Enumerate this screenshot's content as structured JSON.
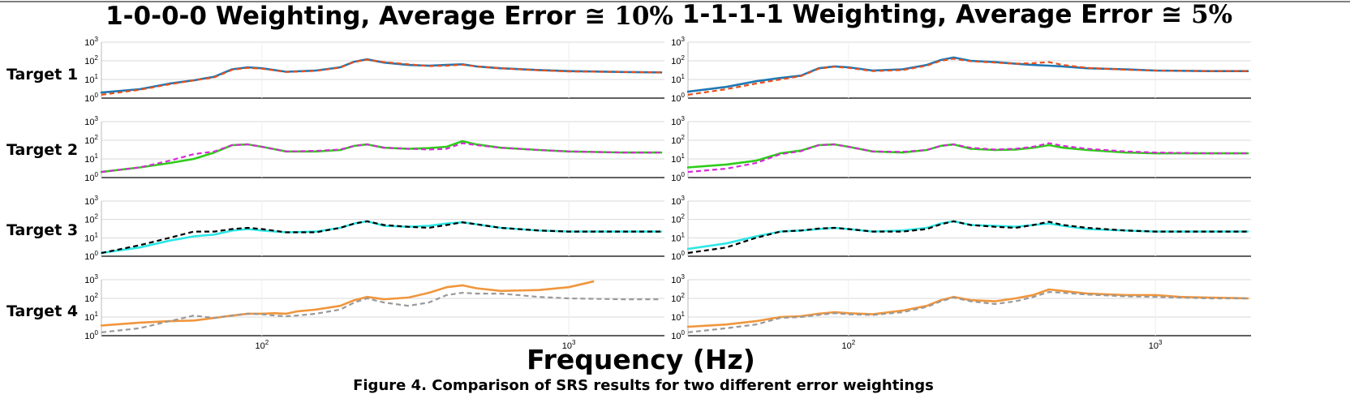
{
  "titles": [
    {
      "text": "1-0-0-0 Weighting, Average Error ≅ ",
      "math": "10%"
    },
    {
      "text": "1-1-1-1 Weighting, Average Error ≅ ",
      "math": "5%"
    }
  ],
  "row_labels": [
    "Target 1",
    "Target 2",
    "Target 3",
    "Target 4"
  ],
  "xlabel": "Frequency (Hz)",
  "caption": "Figure 4. Comparison of SRS results for two different error weightings",
  "chart_data": {
    "type": "line",
    "xscale": "log",
    "yscale": "log",
    "xlim": [
      30,
      2000
    ],
    "ylim": [
      1,
      1000
    ],
    "y_ticks": [
      {
        "base": "10",
        "exp": "0"
      },
      {
        "base": "10",
        "exp": "1"
      },
      {
        "base": "10",
        "exp": "2"
      },
      {
        "base": "10",
        "exp": "3"
      }
    ],
    "x_ticks": [
      {
        "base": "10",
        "exp": "2"
      },
      {
        "base": "10",
        "exp": "3"
      }
    ],
    "grid": true,
    "panels": [
      {
        "row": 1,
        "col": 1,
        "series": [
          {
            "style": "solid",
            "color": "#1f77b4",
            "x": [
              30,
              40,
              50,
              60,
              70,
              80,
              90,
              100,
              120,
              150,
              180,
              200,
              220,
              250,
              300,
              350,
              400,
              450,
              500,
              600,
              800,
              1000,
              1500,
              2000
            ],
            "y": [
              2,
              3,
              6,
              9,
              14,
              35,
              45,
              40,
              26,
              30,
              45,
              90,
              120,
              80,
              60,
              55,
              60,
              65,
              50,
              40,
              32,
              28,
              25,
              24
            ]
          },
          {
            "style": "dashed",
            "color": "#e8501a",
            "x": [
              30,
              40,
              50,
              60,
              70,
              80,
              90,
              100,
              120,
              150,
              180,
              200,
              220,
              250,
              300,
              350,
              400,
              450,
              500,
              600,
              800,
              1000,
              1500,
              2000
            ],
            "y": [
              1.5,
              2.8,
              5.5,
              9,
              13,
              33,
              42,
              38,
              25,
              29,
              43,
              88,
              115,
              85,
              65,
              52,
              55,
              62,
              50,
              40,
              31,
              27,
              25,
              24
            ]
          }
        ]
      },
      {
        "row": 1,
        "col": 2,
        "series": [
          {
            "style": "solid",
            "color": "#1f77b4",
            "x": [
              30,
              40,
              50,
              60,
              70,
              80,
              90,
              100,
              120,
              150,
              180,
              200,
              220,
              250,
              300,
              350,
              400,
              450,
              500,
              600,
              800,
              1000,
              1500,
              2000
            ],
            "y": [
              2.2,
              4,
              8,
              12,
              16,
              40,
              50,
              45,
              30,
              35,
              60,
              110,
              150,
              100,
              85,
              70,
              60,
              55,
              50,
              40,
              35,
              30,
              28,
              28
            ]
          },
          {
            "style": "dashed",
            "color": "#e8501a",
            "x": [
              30,
              40,
              50,
              60,
              70,
              80,
              90,
              100,
              120,
              150,
              180,
              200,
              220,
              250,
              300,
              350,
              400,
              450,
              500,
              600,
              800,
              1000,
              1500,
              2000
            ],
            "y": [
              1.5,
              3,
              6,
              10,
              15,
              38,
              48,
              42,
              28,
              32,
              55,
              100,
              130,
              95,
              80,
              70,
              75,
              85,
              60,
              42,
              33,
              30,
              28,
              28
            ]
          }
        ]
      },
      {
        "row": 2,
        "col": 1,
        "series": [
          {
            "style": "solid",
            "color": "#2ecc1a",
            "x": [
              30,
              40,
              50,
              60,
              70,
              80,
              90,
              100,
              120,
              150,
              180,
              200,
              220,
              250,
              300,
              350,
              400,
              450,
              500,
              600,
              800,
              1000,
              1500,
              2000
            ],
            "y": [
              2,
              3.5,
              6,
              10,
              22,
              55,
              60,
              45,
              25,
              25,
              30,
              50,
              60,
              40,
              35,
              38,
              45,
              90,
              60,
              40,
              30,
              25,
              22,
              22
            ]
          },
          {
            "style": "dashed",
            "color": "#d62ad6",
            "x": [
              30,
              40,
              50,
              60,
              70,
              80,
              90,
              100,
              120,
              150,
              180,
              200,
              220,
              250,
              300,
              350,
              400,
              450,
              500,
              600,
              800,
              1000,
              1500,
              2000
            ],
            "y": [
              2,
              3.5,
              8,
              18,
              25,
              55,
              60,
              45,
              25,
              27,
              32,
              50,
              60,
              40,
              35,
              32,
              35,
              70,
              55,
              40,
              30,
              25,
              22,
              22
            ]
          }
        ]
      },
      {
        "row": 2,
        "col": 2,
        "series": [
          {
            "style": "solid",
            "color": "#2ecc1a",
            "x": [
              30,
              40,
              50,
              60,
              70,
              80,
              90,
              100,
              120,
              150,
              180,
              200,
              220,
              250,
              300,
              350,
              400,
              450,
              500,
              600,
              800,
              1000,
              1500,
              2000
            ],
            "y": [
              3.5,
              5,
              8,
              20,
              28,
              55,
              60,
              45,
              25,
              22,
              30,
              50,
              60,
              35,
              30,
              32,
              40,
              55,
              40,
              30,
              22,
              20,
              20,
              20
            ]
          },
          {
            "style": "dashed",
            "color": "#d62ad6",
            "x": [
              30,
              40,
              50,
              60,
              70,
              80,
              90,
              100,
              120,
              150,
              180,
              200,
              220,
              250,
              300,
              350,
              400,
              450,
              500,
              600,
              800,
              1000,
              1500,
              2000
            ],
            "y": [
              2,
              3,
              6,
              18,
              26,
              55,
              60,
              45,
              25,
              24,
              30,
              50,
              60,
              40,
              32,
              35,
              45,
              70,
              50,
              35,
              25,
              22,
              20,
              20
            ]
          }
        ]
      },
      {
        "row": 3,
        "col": 1,
        "series": [
          {
            "style": "solid",
            "color": "#2ee6e6",
            "x": [
              30,
              40,
              50,
              60,
              70,
              80,
              90,
              100,
              120,
              150,
              180,
              200,
              220,
              250,
              300,
              350,
              400,
              450,
              500,
              600,
              800,
              1000,
              1500,
              2000
            ],
            "y": [
              1.5,
              3,
              7,
              12,
              15,
              25,
              30,
              25,
              20,
              22,
              35,
              60,
              80,
              45,
              40,
              45,
              60,
              70,
              55,
              35,
              25,
              22,
              22,
              22
            ]
          },
          {
            "style": "dashed",
            "color": "#000000",
            "x": [
              30,
              40,
              50,
              60,
              70,
              80,
              90,
              100,
              120,
              150,
              180,
              200,
              220,
              250,
              300,
              350,
              400,
              450,
              500,
              600,
              800,
              1000,
              1500,
              2000
            ],
            "y": [
              1.5,
              4,
              10,
              22,
              22,
              30,
              35,
              30,
              20,
              20,
              35,
              60,
              80,
              50,
              40,
              35,
              50,
              70,
              55,
              35,
              25,
              22,
              22,
              22
            ]
          }
        ]
      },
      {
        "row": 3,
        "col": 2,
        "series": [
          {
            "style": "solid",
            "color": "#2ee6e6",
            "x": [
              30,
              40,
              50,
              60,
              70,
              80,
              90,
              100,
              120,
              150,
              180,
              200,
              220,
              250,
              300,
              350,
              400,
              450,
              500,
              600,
              800,
              1000,
              1500,
              2000
            ],
            "y": [
              2.5,
              5,
              12,
              22,
              25,
              30,
              35,
              30,
              22,
              25,
              35,
              60,
              80,
              50,
              45,
              40,
              50,
              60,
              45,
              30,
              25,
              22,
              22,
              22
            ]
          },
          {
            "style": "dashed",
            "color": "#000000",
            "x": [
              30,
              40,
              50,
              60,
              70,
              80,
              90,
              100,
              120,
              150,
              180,
              200,
              220,
              250,
              300,
              350,
              400,
              450,
              500,
              600,
              800,
              1000,
              1500,
              2000
            ],
            "y": [
              1.5,
              3,
              10,
              22,
              25,
              32,
              35,
              30,
              22,
              22,
              30,
              55,
              80,
              50,
              40,
              35,
              50,
              75,
              50,
              35,
              25,
              22,
              22,
              22
            ]
          }
        ]
      },
      {
        "row": 4,
        "col": 1,
        "series": [
          {
            "style": "solid",
            "color": "#f0963c",
            "x": [
              30,
              40,
              50,
              60,
              70,
              80,
              90,
              100,
              110,
              120,
              130,
              150,
              180,
              200,
              220,
              250,
              300,
              350,
              400,
              450,
              500,
              600,
              800,
              1000,
              1200
            ],
            "y": [
              3.5,
              5,
              6,
              6.5,
              9,
              12,
              15,
              15,
              16,
              15,
              20,
              25,
              40,
              80,
              120,
              90,
              110,
              200,
              400,
              500,
              350,
              250,
              280,
              400,
              800
            ]
          },
          {
            "style": "dashed",
            "color": "#999999",
            "x": [
              30,
              40,
              50,
              60,
              70,
              80,
              90,
              100,
              110,
              120,
              130,
              150,
              180,
              200,
              220,
              250,
              300,
              350,
              400,
              450,
              500,
              600,
              800,
              1000,
              1500,
              2000
            ],
            "y": [
              1.5,
              2.5,
              6,
              12,
              9,
              12,
              15,
              14,
              12,
              11,
              12,
              15,
              25,
              60,
              100,
              60,
              40,
              60,
              150,
              200,
              180,
              180,
              120,
              100,
              90,
              90
            ]
          }
        ]
      },
      {
        "row": 4,
        "col": 2,
        "series": [
          {
            "style": "solid",
            "color": "#f0963c",
            "x": [
              30,
              40,
              50,
              60,
              70,
              80,
              90,
              100,
              120,
              150,
              180,
              200,
              220,
              250,
              300,
              350,
              400,
              450,
              500,
              600,
              800,
              1000,
              1200,
              1500,
              2000
            ],
            "y": [
              3,
              4,
              6,
              10,
              11,
              15,
              18,
              16,
              14,
              22,
              40,
              80,
              120,
              80,
              70,
              100,
              150,
              300,
              250,
              180,
              150,
              150,
              120,
              110,
              100
            ]
          },
          {
            "style": "dashed",
            "color": "#999999",
            "x": [
              30,
              40,
              50,
              60,
              70,
              80,
              90,
              100,
              120,
              150,
              180,
              200,
              220,
              250,
              300,
              350,
              400,
              450,
              500,
              600,
              800,
              1000,
              1200,
              1500,
              2000
            ],
            "y": [
              1.5,
              2.5,
              4,
              9,
              10,
              13,
              16,
              14,
              13,
              18,
              35,
              70,
              110,
              70,
              50,
              70,
              120,
              220,
              200,
              160,
              130,
              120,
              110,
              100,
              100
            ]
          }
        ]
      }
    ]
  }
}
